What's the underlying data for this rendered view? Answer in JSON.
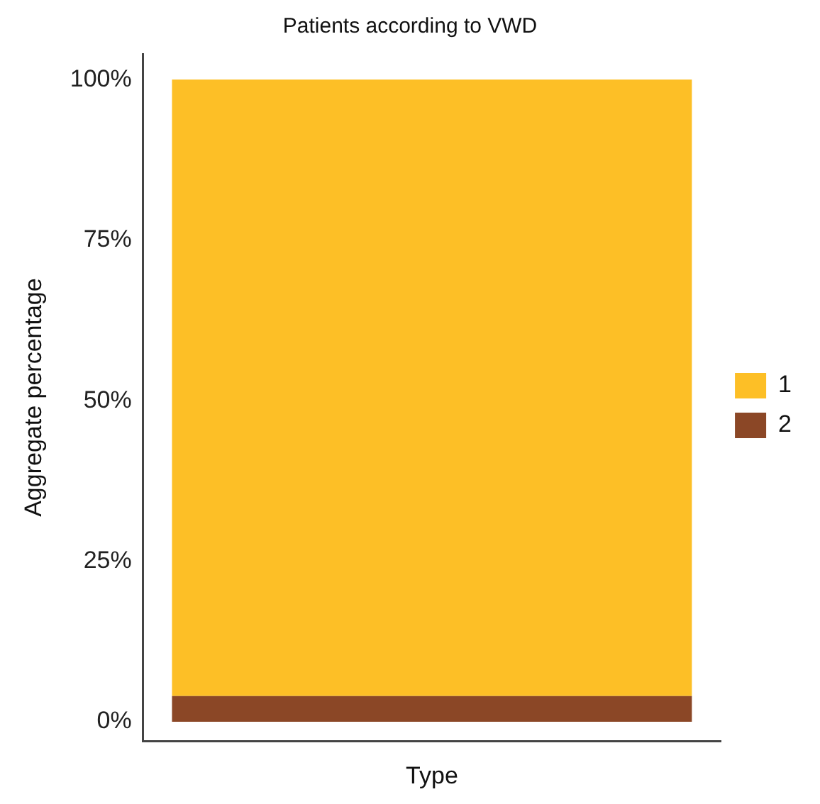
{
  "chart_data": {
    "type": "bar",
    "title": "Patients according to VWD",
    "xlabel": "Type",
    "ylabel": "Aggregate percentage",
    "categories": [
      null
    ],
    "stacked": true,
    "series": [
      {
        "name": "2",
        "color": "#8b4726",
        "values": [
          4
        ]
      },
      {
        "name": "1",
        "color": "#fdbf26",
        "values": [
          96
        ]
      }
    ],
    "ylim": [
      -3,
      104
    ],
    "yticks": [
      {
        "value": 0,
        "label": "0%"
      },
      {
        "value": 25,
        "label": "25%"
      },
      {
        "value": 50,
        "label": "50%"
      },
      {
        "value": 75,
        "label": "75%"
      },
      {
        "value": 100,
        "label": "100%"
      }
    ],
    "grid": false,
    "legend": "right"
  }
}
